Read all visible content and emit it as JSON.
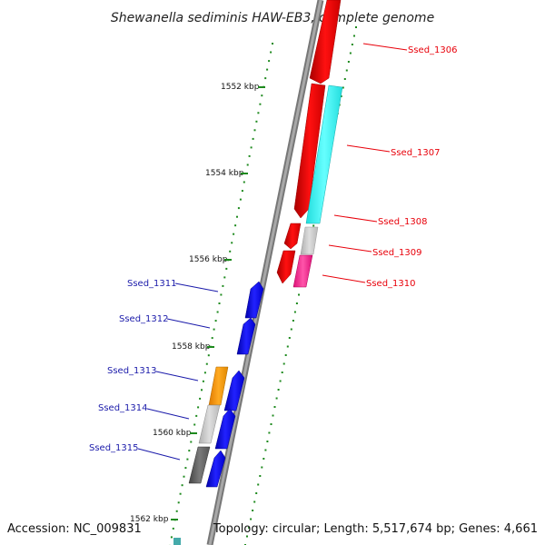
{
  "title": "Shewanella sediminis HAW-EB3, complete genome",
  "accession": "Accession: NC_009831",
  "summary": "Topology: circular; Length: 5,517,674 bp; Genes: 4,661",
  "ruler": {
    "labels": [
      "1552 kbp",
      "1554 kbp",
      "1556 kbp",
      "1558 kbp",
      "1560 kbp",
      "1562 kbp"
    ]
  },
  "genes_right": [
    {
      "label": "Ssed_1306",
      "color": "#e8000a"
    },
    {
      "label": "Ssed_1307",
      "color": "#e8000a"
    },
    {
      "label": "Ssed_1308",
      "color": "#e8000a"
    },
    {
      "label": "Ssed_1309",
      "color": "#e8000a"
    },
    {
      "label": "Ssed_1310",
      "color": "#e8000a"
    }
  ],
  "genes_left": [
    {
      "label": "Ssed_1311",
      "color": "#1a1aaa"
    },
    {
      "label": "Ssed_1312",
      "color": "#1a1aaa"
    },
    {
      "label": "Ssed_1313",
      "color": "#1a1aaa"
    },
    {
      "label": "Ssed_1314",
      "color": "#1a1aaa"
    },
    {
      "label": "Ssed_1315",
      "color": "#1a1aaa"
    }
  ],
  "colors": {
    "backbone": "#8a8a8a",
    "tick": "#1e8a1e",
    "red": "#ff0000",
    "cyan": "#00ffff",
    "light_gray": "#cccccc",
    "magenta": "#ff3399",
    "blue": "#0000ee",
    "orange": "#ff9900",
    "gray": "#bbbbbb",
    "dark_gray": "#666666"
  }
}
